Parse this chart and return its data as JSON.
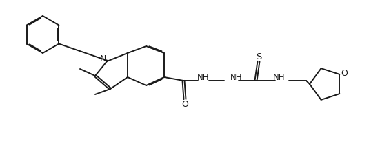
{
  "bg_color": "#ffffff",
  "line_color": "#1a1a1a",
  "line_width": 1.4,
  "font_size": 8.5,
  "figsize": [
    5.51,
    2.22
  ],
  "dpi": 100,
  "xlim": [
    0,
    5.51
  ],
  "ylim": [
    0,
    2.22
  ]
}
